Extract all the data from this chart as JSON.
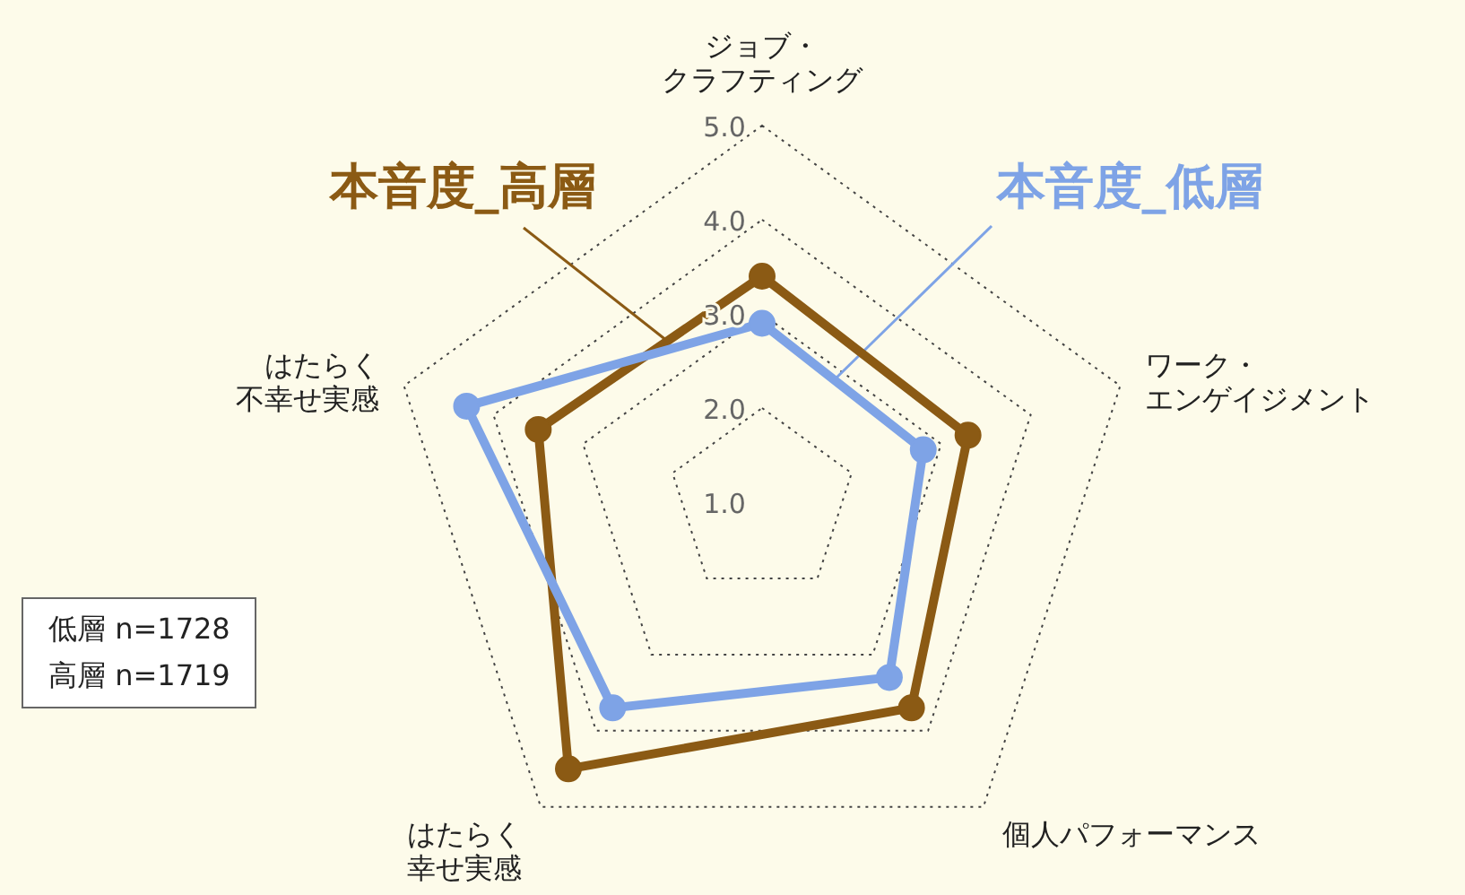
{
  "chart_data": {
    "type": "radar",
    "categories": [
      "ジョブ・クラフティング",
      "ワーク・エンゲイジメント",
      "個人パフォーマンス",
      "はたらく幸せ実感",
      "はたらく不幸せ実感"
    ],
    "series": [
      {
        "name": "本音度_高層",
        "color": "#8b5a14",
        "values": [
          3.4,
          3.3,
          3.7,
          4.5,
          3.5
        ]
      },
      {
        "name": "本音度_低層",
        "color": "#7ea3e6",
        "values": [
          2.9,
          2.8,
          3.3,
          3.7,
          4.3
        ]
      }
    ],
    "ylim": [
      1,
      5
    ],
    "yticks": [
      {
        "value": 1,
        "label": "1.0"
      },
      {
        "value": 2,
        "label": "2.0"
      },
      {
        "value": 3,
        "label": "3.0"
      },
      {
        "value": 4,
        "label": "4.0"
      },
      {
        "value": 5,
        "label": "5.0"
      }
    ],
    "grid": true,
    "marker": "circle",
    "line_style": "solid",
    "annotations": [
      "低層 n=1728",
      "高層 n=1719"
    ]
  }
}
